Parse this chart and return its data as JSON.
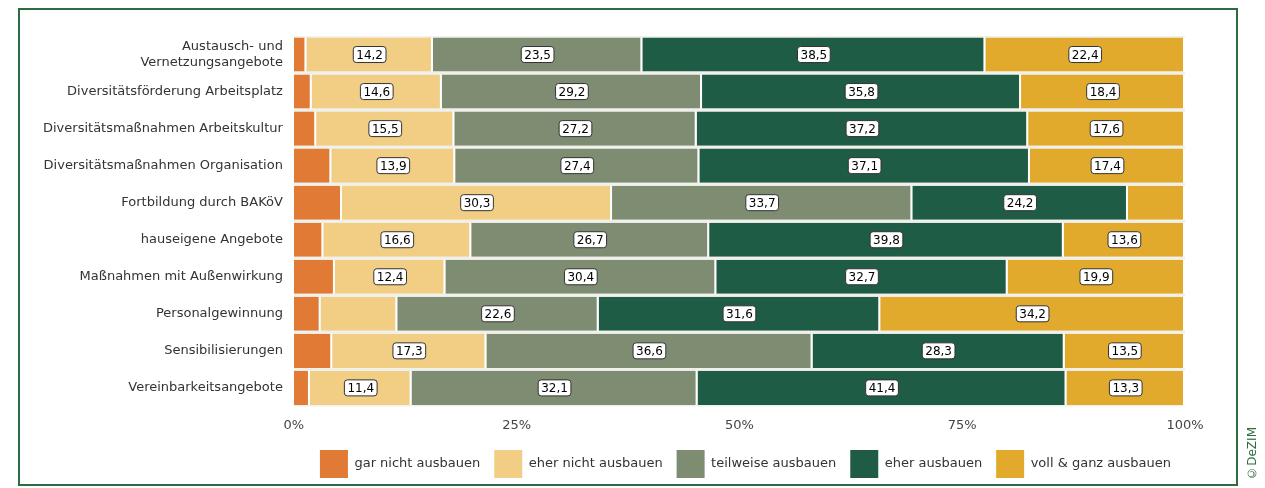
{
  "chart_data": {
    "type": "bar",
    "orientation": "horizontal",
    "stacked": true,
    "categories": [
      "Austausch- und\nVernetzungsangebote",
      "Diversitätsförderung Arbeitsplatz",
      "Diversitätsmaßnahmen Arbeitskultur",
      "Diversitätsmaßnahmen Organisation",
      "Fortbildung durch BAKöV",
      "hauseigene Angebote",
      "Maßnahmen mit Außenwirkung",
      "Personalgewinnung",
      "Sensibilisierungen",
      "Vereinbarkeitsangebote"
    ],
    "series": [
      {
        "name": "gar nicht ausbauen",
        "color": "#e07a35",
        "values": [
          1.4,
          2.0,
          2.5,
          4.2,
          5.4,
          3.3,
          4.6,
          3.0,
          4.3,
          1.8
        ],
        "value_labels": [
          null,
          null,
          null,
          null,
          null,
          null,
          null,
          null,
          null,
          null
        ]
      },
      {
        "name": "eher nicht ausbauen",
        "color": "#f2cd84",
        "values": [
          14.2,
          14.6,
          15.5,
          13.9,
          30.3,
          16.6,
          12.4,
          8.6,
          17.3,
          11.4
        ],
        "value_labels": [
          "14,2",
          "14,6",
          "15,5",
          "13,9",
          "30,3",
          "16,6",
          "12,4",
          null,
          "17,3",
          "11,4"
        ]
      },
      {
        "name": "teilweise ausbauen",
        "color": "#7e8c72",
        "values": [
          23.5,
          29.2,
          27.2,
          27.4,
          33.7,
          26.7,
          30.4,
          22.6,
          36.6,
          32.1
        ],
        "value_labels": [
          "23,5",
          "29,2",
          "27,2",
          "27,4",
          "33,7",
          "26,7",
          "30,4",
          "22,6",
          "36,6",
          "32,1"
        ]
      },
      {
        "name": "eher ausbauen",
        "color": "#1e5c45",
        "values": [
          38.5,
          35.8,
          37.2,
          37.1,
          24.2,
          39.8,
          32.7,
          31.6,
          28.3,
          41.4
        ],
        "value_labels": [
          "38,5",
          "35,8",
          "37,2",
          "37,1",
          "24,2",
          "39,8",
          "32,7",
          "31,6",
          "28,3",
          "41,4"
        ]
      },
      {
        "name": "voll & ganz ausbauen",
        "color": "#e2aa2c",
        "values": [
          22.4,
          18.4,
          17.6,
          17.4,
          6.4,
          13.6,
          19.9,
          34.2,
          13.5,
          13.3
        ],
        "value_labels": [
          "22,4",
          "18,4",
          "17,6",
          "17,4",
          null,
          "13,6",
          "19,9",
          "34,2",
          "13,5",
          "13,3"
        ]
      }
    ],
    "xlim": [
      0,
      100
    ],
    "xticks": [
      {
        "value": 0,
        "label": "0%"
      },
      {
        "value": 25,
        "label": "25%"
      },
      {
        "value": 50,
        "label": "50%"
      },
      {
        "value": 75,
        "label": "75%"
      },
      {
        "value": 100,
        "label": "100%"
      }
    ],
    "legend": "bottom",
    "annotations": [
      "©DeZIM"
    ]
  }
}
